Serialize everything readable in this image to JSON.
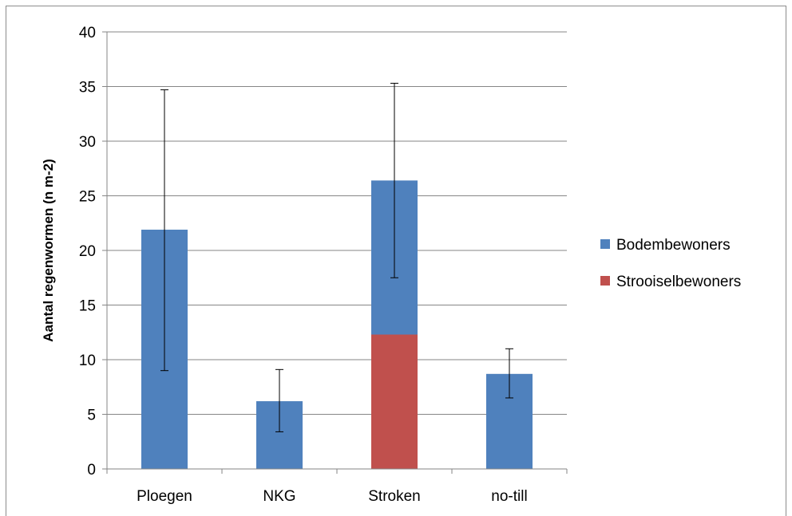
{
  "chart_data": {
    "type": "bar",
    "stacked": true,
    "title": "",
    "xlabel": "",
    "ylabel": "Aantal regenwormen (n m-2)",
    "ylim": [
      0,
      40
    ],
    "yticks": [
      0,
      5,
      10,
      15,
      20,
      25,
      30,
      35,
      40
    ],
    "grid": true,
    "legend": "right",
    "categories": [
      "Ploegen",
      "NKG",
      "Stroken",
      "no-till"
    ],
    "series": [
      {
        "name": "Strooiselbewoners",
        "color": "#c0504d",
        "values": [
          0,
          0,
          12.3,
          0
        ]
      },
      {
        "name": "Bodembewoners",
        "color": "#4f81bd",
        "values": [
          21.9,
          6.2,
          14.1,
          8.7
        ]
      }
    ],
    "error_bars": [
      {
        "category": "Ploegen",
        "low": 9.0,
        "high": 34.7
      },
      {
        "category": "NKG",
        "low": 3.4,
        "high": 9.1
      },
      {
        "category": "Stroken",
        "low": 17.5,
        "high": 35.3
      },
      {
        "category": "no-till",
        "low": 6.5,
        "high": 11.0
      }
    ],
    "legend_order": [
      "Bodembewoners",
      "Strooiselbewoners"
    ]
  }
}
